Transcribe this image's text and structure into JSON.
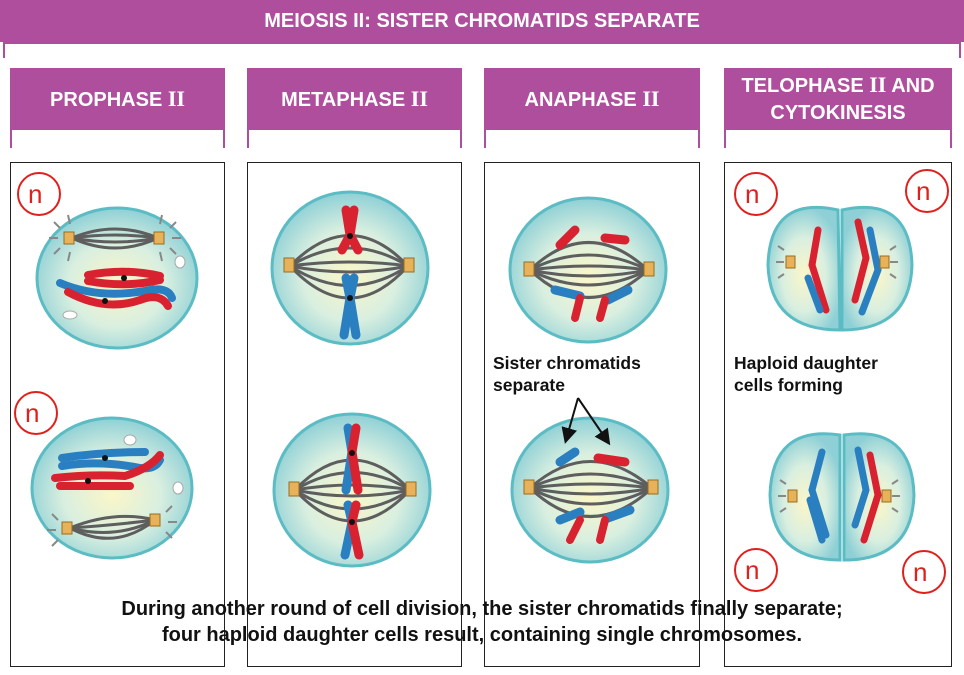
{
  "title": "MEIOSIS II: SISTER CHROMATIDS SEPARATE",
  "phases": [
    {
      "name": "PROPHASE",
      "numeral": "II"
    },
    {
      "name": "METAPHASE",
      "numeral": "II"
    },
    {
      "name": "ANAPHASE",
      "numeral": "II"
    },
    {
      "name_line1": "TELOPHASE",
      "numeral": "II",
      "name_line1_suffix": "AND",
      "name_line2": "CYTOKINESIS"
    }
  ],
  "ploidy_label": "n",
  "annotations": {
    "sister_chromatids": [
      "Sister chromatids",
      "separate"
    ],
    "haploid_cells": [
      "Haploid daughter",
      "cells forming"
    ]
  },
  "caption": [
    "During another round of cell division, the sister chromatids finally separate;",
    "four haploid daughter cells result, containing single chromosomes."
  ],
  "colors": {
    "header": "#b04e9e",
    "cell_fill": "#c8e8ea",
    "cell_edge": "#5bbcc4",
    "chromosome_red": "#d92230",
    "chromosome_blue": "#2a7fc1",
    "spindle": "#5e5e5e",
    "n_circle": "#e0201c"
  }
}
